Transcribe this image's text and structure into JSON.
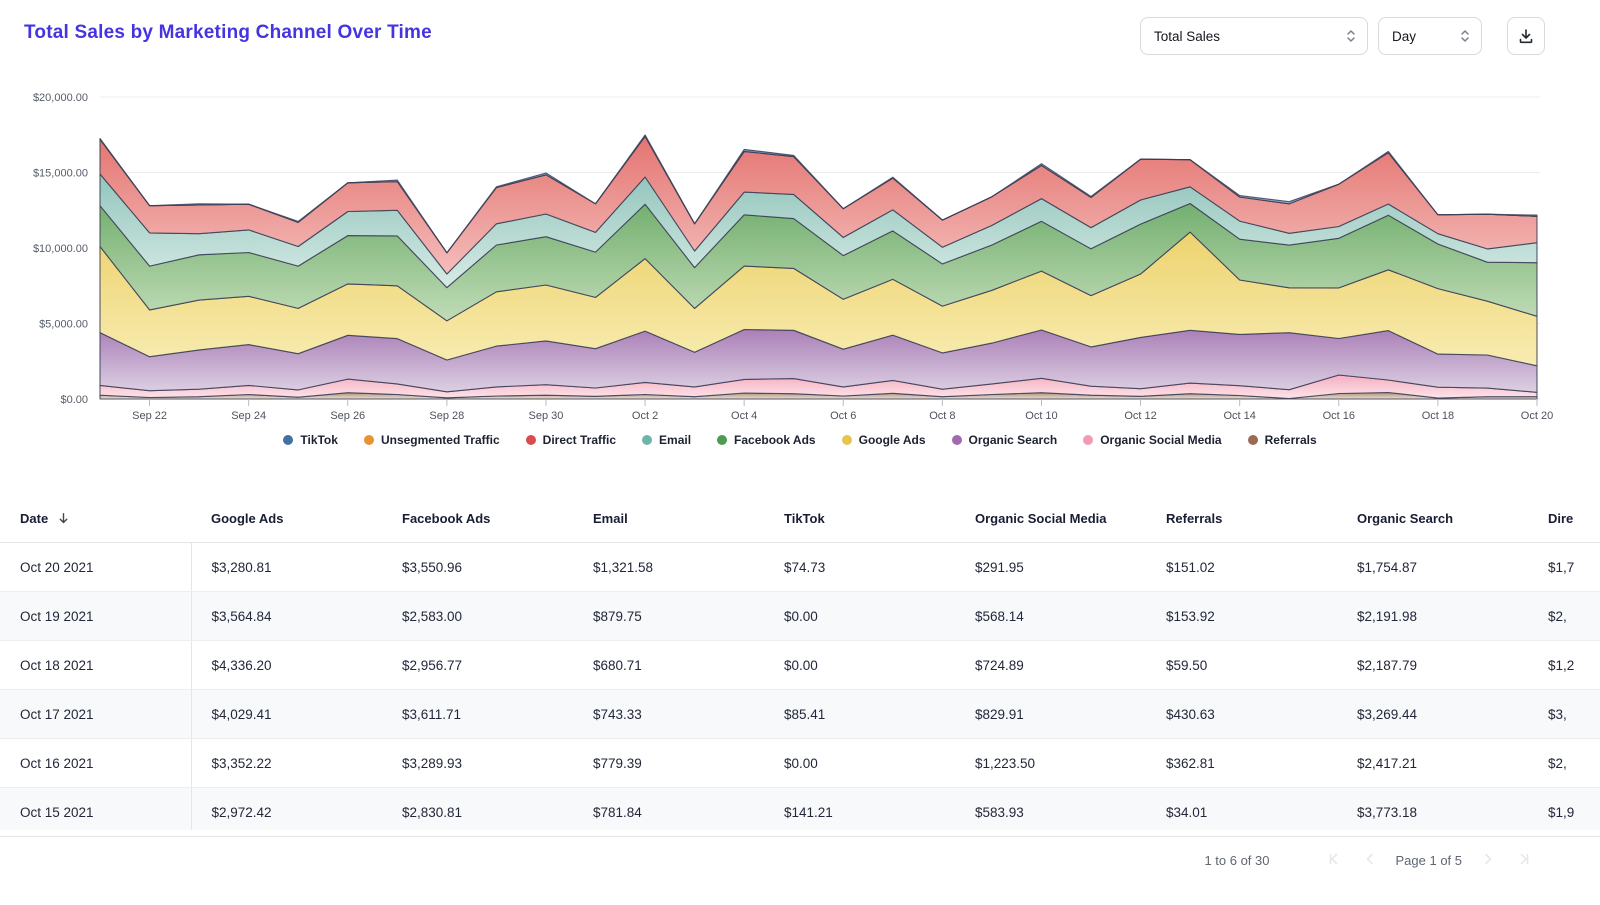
{
  "page": {
    "title": "Total Sales by Marketing Channel Over Time"
  },
  "controls": {
    "metric_selected": "Total Sales",
    "granularity_selected": "Day",
    "icons": {
      "metric_dropdown": "updown-chevrons-icon",
      "granularity_dropdown": "updown-chevrons-icon",
      "download": "download-tray-icon"
    }
  },
  "chart_data": {
    "type": "area",
    "stacked": true,
    "title": "Total Sales by Marketing Channel Over Time",
    "xlabel": "",
    "ylabel": "",
    "ylim": [
      0,
      20000
    ],
    "grid": true,
    "legend_position": "bottom",
    "y_ticks": [
      {
        "value": 0,
        "label": "$0.00"
      },
      {
        "value": 5000,
        "label": "$5,000.00"
      },
      {
        "value": 10000,
        "label": "$10,000.00"
      },
      {
        "value": 15000,
        "label": "$15,000.00"
      },
      {
        "value": 20000,
        "label": "$20,000.00"
      }
    ],
    "x": [
      "Sep 21",
      "Sep 22",
      "Sep 23",
      "Sep 24",
      "Sep 25",
      "Sep 26",
      "Sep 27",
      "Sep 28",
      "Sep 29",
      "Sep 30",
      "Oct 1",
      "Oct 2",
      "Oct 3",
      "Oct 4",
      "Oct 5",
      "Oct 6",
      "Oct 7",
      "Oct 8",
      "Oct 9",
      "Oct 10",
      "Oct 11",
      "Oct 12",
      "Oct 13",
      "Oct 14",
      "Oct 15",
      "Oct 16",
      "Oct 17",
      "Oct 18",
      "Oct 19",
      "Oct 20"
    ],
    "x_tick_labels": [
      "Sep 22",
      "Sep 24",
      "Sep 26",
      "Sep 28",
      "Sep 30",
      "Oct 2",
      "Oct 4",
      "Oct 6",
      "Oct 8",
      "Oct 10",
      "Oct 12",
      "Oct 14",
      "Oct 16",
      "Oct 18",
      "Oct 20"
    ],
    "series": [
      {
        "name": "Referrals",
        "color": "#9a6a52",
        "fill_top": "#b08f77",
        "fill_bottom": "#ead fd3",
        "values": [
          250,
          100,
          150,
          300,
          120,
          420,
          300,
          80,
          200,
          250,
          180,
          300,
          150,
          400,
          350,
          200,
          380,
          150,
          300,
          420,
          250,
          180,
          350,
          230,
          34.01,
          362.81,
          430.63,
          59.5,
          153.92,
          151.02
        ]
      },
      {
        "name": "Organic Social Media",
        "color": "#f09ab4",
        "fill_top": "#f5aec0",
        "fill_bottom": "#fde4ea",
        "values": [
          650,
          450,
          500,
          600,
          480,
          900,
          700,
          400,
          600,
          700,
          550,
          800,
          650,
          900,
          1000,
          600,
          850,
          500,
          700,
          950,
          600,
          500,
          700,
          650,
          583.93,
          1223.5,
          829.91,
          724.89,
          568.14,
          291.95
        ]
      },
      {
        "name": "Organic Search",
        "color": "#9f6bae",
        "fill_top": "#aa80b7",
        "fill_bottom": "#ddd0e3",
        "values": [
          3500,
          2250,
          2600,
          2700,
          2400,
          2900,
          3000,
          2100,
          2700,
          2900,
          2600,
          3400,
          2300,
          3300,
          3200,
          2500,
          3000,
          2400,
          2700,
          3200,
          2600,
          3400,
          3500,
          3400,
          3773.18,
          2417.21,
          3269.44,
          2187.79,
          2191.98,
          1754.87
        ]
      },
      {
        "name": "Google Ads",
        "color": "#e5c54b",
        "fill_top": "#edd36e",
        "fill_bottom": "#f8ecb2",
        "values": [
          5700,
          3100,
          3300,
          3200,
          3000,
          3400,
          3500,
          2600,
          3600,
          3700,
          3400,
          4800,
          2900,
          4200,
          4100,
          3300,
          3700,
          3100,
          3500,
          3900,
          3400,
          4200,
          6500,
          3600,
          2972.42,
          3352.22,
          4029.41,
          4336.2,
          3564.84,
          3280.81
        ]
      },
      {
        "name": "Facebook Ads",
        "color": "#4d9a51",
        "fill_top": "#73af6f",
        "fill_bottom": "#c1dcb7",
        "values": [
          2700,
          2900,
          3000,
          2900,
          2800,
          3200,
          3300,
          2200,
          3100,
          3200,
          3000,
          3600,
          2700,
          3400,
          3300,
          2900,
          3200,
          2800,
          3000,
          3300,
          3100,
          3300,
          1900,
          2700,
          2830.81,
          3289.93,
          3611.71,
          2956.77,
          2583.0,
          3550.96
        ]
      },
      {
        "name": "Email",
        "color": "#6fb4aa",
        "fill_top": "#92c5bc",
        "fill_bottom": "#d8ebe6",
        "values": [
          2100,
          2200,
          1400,
          1500,
          1300,
          1600,
          1700,
          900,
          1400,
          1500,
          1300,
          1800,
          1100,
          1500,
          1600,
          1200,
          1400,
          1100,
          1300,
          1500,
          1400,
          1600,
          1100,
          1200,
          781.84,
          779.39,
          743.33,
          680.71,
          879.75,
          1321.58
        ]
      },
      {
        "name": "Direct Traffic",
        "color": "#d84b50",
        "fill_top": "#e47470",
        "fill_bottom": "#f4bdbb",
        "values": [
          2300,
          1800,
          1900,
          1700,
          1600,
          1900,
          1900,
          1400,
          2400,
          2600,
          1900,
          2700,
          1800,
          2700,
          2500,
          1900,
          2100,
          1800,
          1900,
          2200,
          2000,
          2700,
          1800,
          1600,
          1950,
          2800,
          3400,
          1250,
          2300,
          1750
        ]
      },
      {
        "name": "Unsegmented Traffic",
        "color": "#e89232",
        "fill_top": "#eda65a",
        "fill_bottom": "#f9dfc2",
        "values": [
          0,
          0,
          0,
          0,
          0,
          0,
          0,
          0,
          0,
          0,
          0,
          0,
          0,
          0,
          0,
          0,
          0,
          0,
          0,
          0,
          0,
          0,
          0,
          0,
          0,
          0,
          0,
          0,
          0,
          0
        ]
      },
      {
        "name": "TikTok",
        "color": "#42709f",
        "fill_top": "#6c93c2",
        "fill_bottom": "#b8cce1",
        "values": [
          50,
          0,
          80,
          0,
          60,
          0,
          100,
          0,
          50,
          120,
          0,
          90,
          0,
          130,
          80,
          0,
          60,
          0,
          0,
          110,
          70,
          0,
          0,
          90,
          141.21,
          0,
          85.41,
          0,
          0,
          74.73
        ]
      }
    ],
    "legend": [
      {
        "label": "TikTok",
        "color": "#42709f"
      },
      {
        "label": "Unsegmented Traffic",
        "color": "#e89232"
      },
      {
        "label": "Direct Traffic",
        "color": "#d84b50"
      },
      {
        "label": "Email",
        "color": "#6fb4aa"
      },
      {
        "label": "Facebook Ads",
        "color": "#4d9a51"
      },
      {
        "label": "Google Ads",
        "color": "#e5c54b"
      },
      {
        "label": "Organic Search",
        "color": "#9f6bae"
      },
      {
        "label": "Organic Social Media",
        "color": "#f09ab4"
      },
      {
        "label": "Referrals",
        "color": "#9a6a52"
      }
    ]
  },
  "table": {
    "sort_column": "Date",
    "sort_direction": "desc",
    "columns": [
      "Date",
      "Google Ads",
      "Facebook Ads",
      "Email",
      "TikTok",
      "Organic Social Media",
      "Referrals",
      "Organic Search",
      "Dire"
    ],
    "rows": [
      [
        "Oct 20 2021",
        "$3,280.81",
        "$3,550.96",
        "$1,321.58",
        "$74.73",
        "$291.95",
        "$151.02",
        "$1,754.87",
        "$1,7"
      ],
      [
        "Oct 19 2021",
        "$3,564.84",
        "$2,583.00",
        "$879.75",
        "$0.00",
        "$568.14",
        "$153.92",
        "$2,191.98",
        "$2,"
      ],
      [
        "Oct 18 2021",
        "$4,336.20",
        "$2,956.77",
        "$680.71",
        "$0.00",
        "$724.89",
        "$59.50",
        "$2,187.79",
        "$1,2"
      ],
      [
        "Oct 17 2021",
        "$4,029.41",
        "$3,611.71",
        "$743.33",
        "$85.41",
        "$829.91",
        "$430.63",
        "$3,269.44",
        "$3,"
      ],
      [
        "Oct 16 2021",
        "$3,352.22",
        "$3,289.93",
        "$779.39",
        "$0.00",
        "$1,223.50",
        "$362.81",
        "$2,417.21",
        "$2,"
      ],
      [
        "Oct 15 2021",
        "$2,972.42",
        "$2,830.81",
        "$781.84",
        "$141.21",
        "$583.93",
        "$34.01",
        "$3,773.18",
        "$1,9"
      ]
    ]
  },
  "pagination": {
    "range_label": "1 to 6 of 30",
    "page_label": "Page 1 of 5",
    "icons": {
      "first": "chevron-bar-left-icon",
      "prev": "chevron-left-icon",
      "next": "chevron-right-icon",
      "last": "chevron-bar-right-icon"
    }
  }
}
